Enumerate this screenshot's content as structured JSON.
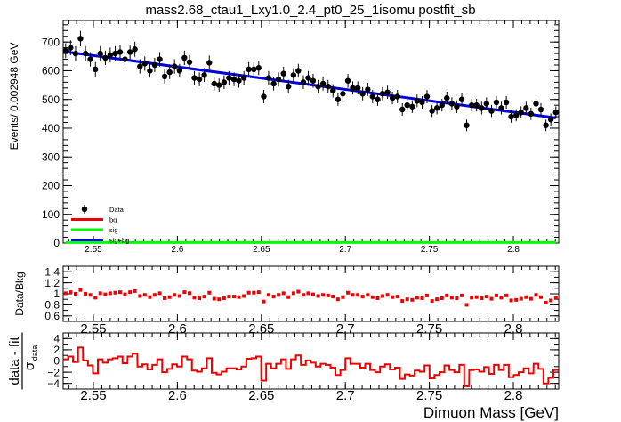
{
  "canvas": {
    "title": "mass2.68_ctau1_Lxy1.0_2.4_pt0_25_1isomu   postfit_sb"
  },
  "colors": {
    "bg": "#ee0000",
    "sig": "#00ff00",
    "sigbg": "#0000dd",
    "data": "#000000",
    "ratio": "#ee0000",
    "pull": "#ee0000"
  },
  "chart_data": [
    {
      "type": "scatter",
      "panel": "main",
      "ylabel": "Events/ 0.002948 GeV",
      "xlim": [
        2.532,
        2.827
      ],
      "ylim": [
        0,
        775
      ],
      "x_ticks": [
        2.55,
        2.6,
        2.65,
        2.7,
        2.75,
        2.8
      ],
      "x_tick_labels": [
        "2.55",
        "2.6",
        "2.65",
        "2.7",
        "2.75",
        "2.8"
      ],
      "y_ticks": [
        0,
        100,
        200,
        300,
        400,
        500,
        600,
        700
      ],
      "y_tick_labels": [
        "0",
        "100",
        "200",
        "300",
        "400",
        "500",
        "600",
        "700"
      ],
      "legend": {
        "position": "bottom-left",
        "entries": [
          {
            "label": "Data",
            "style": "marker",
            "color": "#000000"
          },
          {
            "label": "bg",
            "style": "line",
            "color": "#ee0000"
          },
          {
            "label": "sig",
            "style": "line",
            "color": "#00ff00"
          },
          {
            "label": "sig+bg",
            "style": "line",
            "color": "#0000dd"
          }
        ]
      },
      "data": {
        "x": [
          2.5335,
          2.5364,
          2.5394,
          2.5423,
          2.5453,
          2.5482,
          2.5512,
          2.5541,
          2.5571,
          2.56,
          2.563,
          2.5659,
          2.5688,
          2.5718,
          2.5747,
          2.5777,
          2.5806,
          2.5836,
          2.5865,
          2.5895,
          2.5924,
          2.5954,
          2.5983,
          2.6013,
          2.6042,
          2.6072,
          2.6101,
          2.6131,
          2.616,
          2.619,
          2.6219,
          2.6248,
          2.6278,
          2.6307,
          2.6337,
          2.6366,
          2.6396,
          2.6425,
          2.6455,
          2.6484,
          2.6514,
          2.6543,
          2.6573,
          2.6602,
          2.6632,
          2.6661,
          2.6691,
          2.672,
          2.675,
          2.6779,
          2.6808,
          2.6838,
          2.6867,
          2.6897,
          2.6926,
          2.6956,
          2.6985,
          2.7015,
          2.7044,
          2.7074,
          2.7103,
          2.7133,
          2.7162,
          2.7192,
          2.7221,
          2.7251,
          2.728,
          2.731,
          2.7339,
          2.7368,
          2.7398,
          2.7427,
          2.7457,
          2.7486,
          2.7516,
          2.7545,
          2.7575,
          2.7604,
          2.7634,
          2.7663,
          2.7693,
          2.7722,
          2.7752,
          2.7781,
          2.7811,
          2.784,
          2.787,
          2.7899,
          2.7928,
          2.7958,
          2.7987,
          2.8017,
          2.8046,
          2.8076,
          2.8105,
          2.8135,
          2.8164,
          2.8194,
          2.8223,
          2.8253
        ],
        "y": [
          670,
          680,
          660,
          712,
          660,
          640,
          605,
          660,
          645,
          655,
          660,
          665,
          640,
          665,
          675,
          615,
          625,
          600,
          620,
          640,
          580,
          595,
          615,
          600,
          645,
          630,
          575,
          570,
          585,
          628,
          555,
          550,
          560,
          575,
          570,
          565,
          575,
          605,
          605,
          610,
          510,
          575,
          555,
          570,
          590,
          545,
          585,
          600,
          560,
          575,
          565,
          545,
          555,
          545,
          530,
          500,
          520,
          565,
          540,
          540,
          520,
          535,
          510,
          500,
          520,
          525,
          505,
          510,
          465,
          480,
          475,
          495,
          490,
          510,
          460,
          470,
          480,
          505,
          485,
          475,
          500,
          410,
          480,
          480,
          470,
          485,
          460,
          490,
          470,
          490,
          440,
          445,
          455,
          470,
          450,
          485,
          465,
          410,
          430,
          455
        ],
        "errors": [
          26,
          26,
          26,
          27,
          26,
          25,
          25,
          26,
          25,
          26,
          26,
          26,
          25,
          26,
          26,
          25,
          25,
          24,
          25,
          25,
          24,
          24,
          25,
          24,
          25,
          25,
          24,
          24,
          24,
          25,
          24,
          23,
          24,
          24,
          24,
          24,
          24,
          25,
          25,
          25,
          23,
          24,
          24,
          24,
          24,
          23,
          24,
          24,
          24,
          24,
          24,
          23,
          24,
          23,
          23,
          22,
          23,
          24,
          23,
          23,
          23,
          23,
          23,
          22,
          23,
          23,
          22,
          23,
          22,
          22,
          22,
          22,
          22,
          23,
          21,
          22,
          22,
          22,
          22,
          22,
          22,
          20,
          22,
          22,
          22,
          22,
          21,
          22,
          22,
          22,
          21,
          21,
          21,
          22,
          21,
          22,
          22,
          20,
          21,
          21
        ]
      },
      "fit_sigbg": {
        "x": [
          2.5335,
          2.8253
        ],
        "y": [
          666,
          436
        ]
      },
      "fit_sig": {
        "x": [
          2.5335,
          2.8253
        ],
        "y": [
          2,
          2
        ]
      }
    },
    {
      "type": "scatter",
      "panel": "ratio",
      "ylabel": "Data/Bkg",
      "xlim": [
        2.532,
        2.827
      ],
      "ylim": [
        0.5,
        1.5
      ],
      "y_ticks": [
        0.6,
        0.8,
        1.0,
        1.2,
        1.4
      ],
      "y_tick_labels": [
        "0.6",
        "0.8",
        "1",
        "1.2",
        "1.4"
      ],
      "x_tick_labels": [
        "2.55",
        "2.6",
        "2.65",
        "2.7",
        "2.75",
        "2.8"
      ],
      "values": [
        1.01,
        1.03,
        1.0,
        1.07,
        1.0,
        0.98,
        0.93,
        1.01,
        0.99,
        1.01,
        1.02,
        1.03,
        0.99,
        1.03,
        1.05,
        0.96,
        0.98,
        0.94,
        0.98,
        1.01,
        0.92,
        0.94,
        0.98,
        0.96,
        1.03,
        1.01,
        0.93,
        0.92,
        0.95,
        1.02,
        0.91,
        0.9,
        0.92,
        0.95,
        0.95,
        0.94,
        0.96,
        1.02,
        1.02,
        1.03,
        0.86,
        0.98,
        0.95,
        0.98,
        1.01,
        0.94,
        1.01,
        1.04,
        0.98,
        1.01,
        0.99,
        0.96,
        0.98,
        0.97,
        0.95,
        0.9,
        0.94,
        1.02,
        0.98,
        0.98,
        0.95,
        0.98,
        0.94,
        0.92,
        0.96,
        0.98,
        0.94,
        0.95,
        0.87,
        0.9,
        0.89,
        0.93,
        0.92,
        0.97,
        0.87,
        0.9,
        0.92,
        0.97,
        0.93,
        0.92,
        0.97,
        0.8,
        0.93,
        0.94,
        0.92,
        0.95,
        0.91,
        0.97,
        0.93,
        0.97,
        0.88,
        0.89,
        0.91,
        0.94,
        0.91,
        0.98,
        0.94,
        0.84,
        0.88,
        0.93
      ]
    },
    {
      "type": "bar",
      "panel": "pull",
      "ylabel_main": "data - fit",
      "ylabel_sub": "σ",
      "ylabel_subscript": "data",
      "xlabel": "Dimuon Mass [GeV]",
      "xlim": [
        2.532,
        2.827
      ],
      "ylim": [
        -5,
        5
      ],
      "y_ticks": [
        -4,
        -2,
        0,
        2,
        4
      ],
      "y_tick_labels": [
        "−4",
        "−2",
        "0",
        "2",
        "4"
      ],
      "x_tick_labels": [
        "2.55",
        "2.6",
        "2.65",
        "2.7",
        "2.75",
        "2.8"
      ],
      "values": [
        0.3,
        0.8,
        -0.2,
        2.4,
        0.1,
        -0.8,
        -2.2,
        0.3,
        -0.3,
        0.3,
        0.5,
        0.8,
        -0.4,
        0.8,
        1.3,
        -1.0,
        -0.6,
        -1.5,
        -0.7,
        0.3,
        -2.0,
        -1.4,
        -0.6,
        -1.0,
        0.8,
        0.3,
        -1.7,
        -1.9,
        -1.3,
        0.5,
        -2.1,
        -2.4,
        -1.9,
        -1.3,
        -1.3,
        -1.5,
        -1.0,
        0.4,
        0.5,
        0.8,
        -3.5,
        -0.5,
        -1.3,
        -0.5,
        0.3,
        -1.4,
        0.3,
        1.0,
        -0.7,
        0.1,
        -0.3,
        -1.0,
        -0.5,
        -0.7,
        -1.2,
        -2.5,
        -1.6,
        0.5,
        -0.5,
        -0.5,
        -1.2,
        -0.5,
        -1.6,
        -2.0,
        -1.0,
        -0.6,
        -1.5,
        -1.2,
        -3.2,
        -2.4,
        -2.6,
        -1.7,
        -1.9,
        -0.8,
        -3.1,
        -2.5,
        -2.0,
        -0.8,
        -1.6,
        -2.0,
        -0.7,
        -4.5,
        -1.6,
        -1.5,
        -1.9,
        -1.1,
        -2.3,
        -0.7,
        -1.6,
        -0.7,
        -2.9,
        -2.5,
        -2.0,
        -1.3,
        -2.2,
        -0.5,
        -1.4,
        -4.0,
        -3.0,
        -1.6
      ]
    }
  ]
}
